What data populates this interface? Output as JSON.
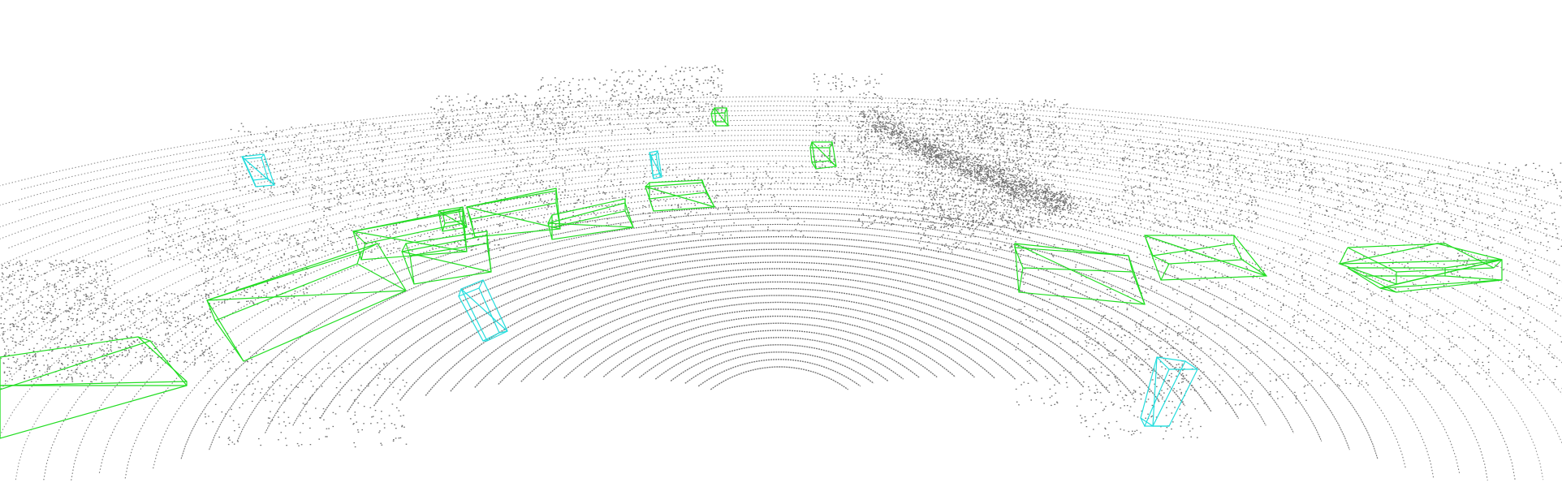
{
  "colors": {
    "background": "#ffffff",
    "points": "#6e6e6e",
    "car_box": "#22dd22",
    "pedestrian_box": "#22dddd"
  },
  "legend": {
    "show": false
  },
  "object_counts": {
    "cars": 14,
    "pedestrians": 4
  }
}
